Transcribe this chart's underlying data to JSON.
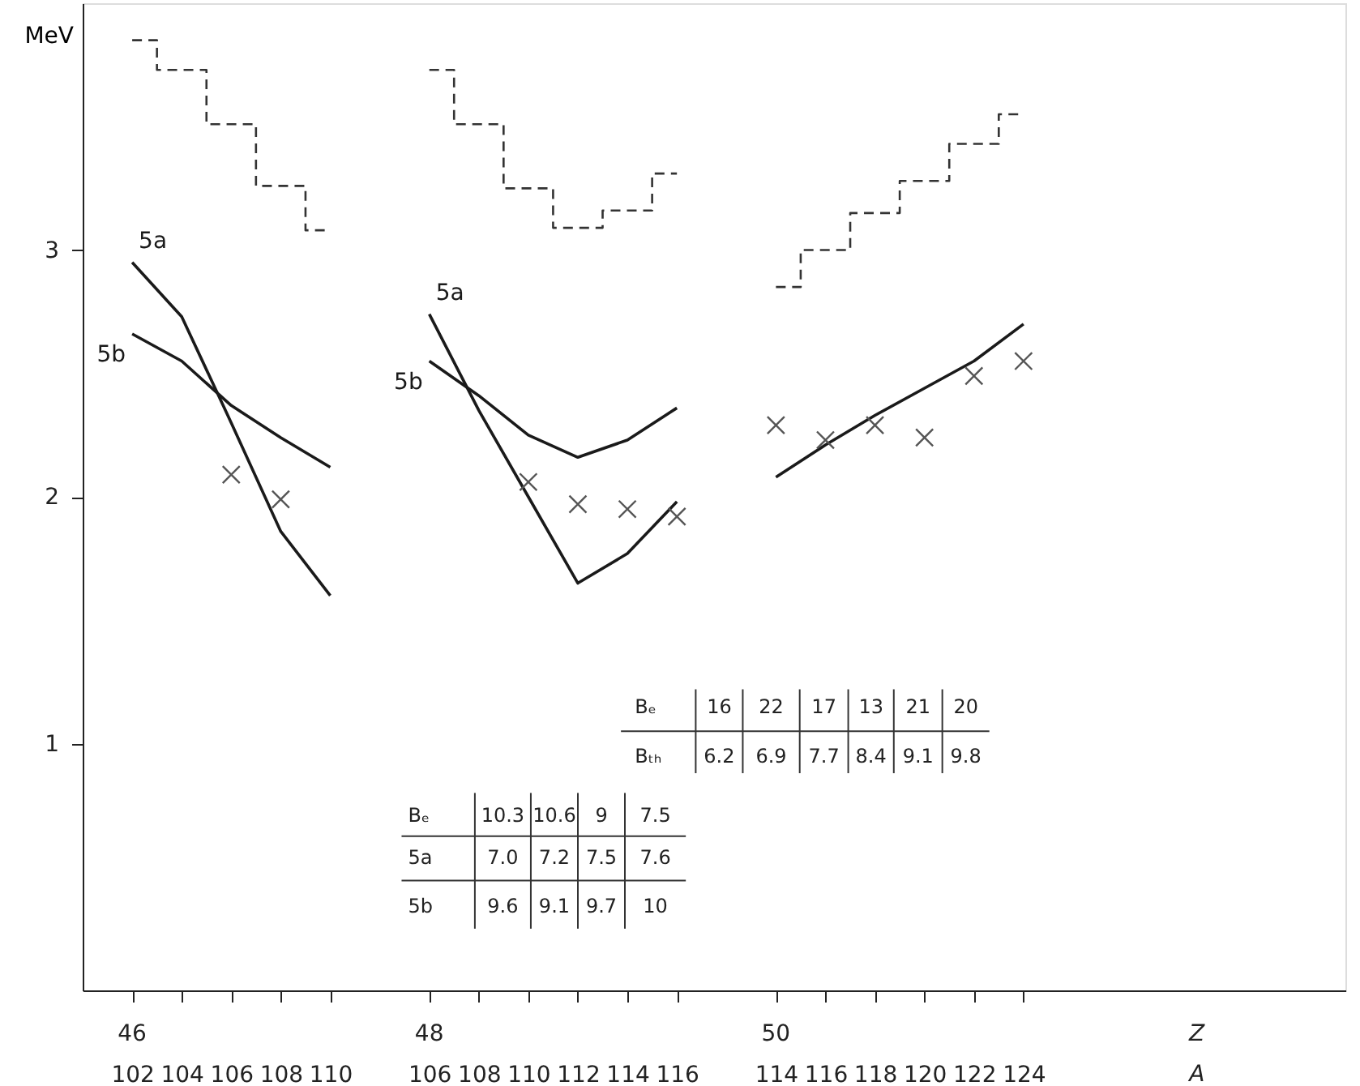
{
  "chart_data": {
    "type": "line",
    "ylabel": "MeV",
    "categories": [
      "102",
      "104",
      "106",
      "108",
      "110",
      null,
      "106",
      "108",
      "110",
      "112",
      "114",
      "116",
      null,
      "114",
      "116",
      "118",
      "120",
      "122",
      "124"
    ],
    "ylim": [
      0,
      4.0
    ],
    "yticks": [
      1,
      2,
      3
    ],
    "grid": false,
    "annotations": [
      "Bₑ",
      "16",
      "22",
      "17",
      "13",
      "21",
      "20",
      "Bₜₕ",
      "6.2",
      "6.9",
      "7.7",
      "8.4",
      "9.1",
      "9.8",
      "Bₑ",
      "10.3",
      "10.6",
      "9",
      "7.5",
      "5a",
      "7.0",
      "7.2",
      "7.5",
      "7.6",
      "5b",
      "9.6",
      "9.1",
      "9.7",
      "10",
      "46",
      "48",
      "50",
      "Z",
      "A"
    ],
    "series": [
      {
        "name": "5a",
        "color": "#1a1a1a",
        "values": [
          2.95,
          2.73,
          2.3,
          1.86,
          1.6,
          null,
          2.74,
          2.35,
          2.0,
          1.65,
          1.77,
          1.98,
          null,
          null,
          null,
          null,
          null,
          null,
          null
        ]
      },
      {
        "name": "5b",
        "color": "#1a1a1a",
        "values": [
          2.66,
          2.55,
          2.37,
          2.24,
          2.12,
          null,
          2.55,
          2.41,
          2.25,
          2.16,
          2.23,
          2.36,
          null,
          null,
          null,
          null,
          null,
          null,
          null
        ]
      },
      {
        "color": "#1a1a1a",
        "values": [
          null,
          null,
          null,
          null,
          null,
          null,
          null,
          null,
          null,
          null,
          null,
          null,
          null,
          2.08,
          2.21,
          2.33,
          2.44,
          2.55,
          2.7
        ]
      },
      {
        "type": "step",
        "line_style": "dashed",
        "color": "#333333",
        "values": [
          3.85,
          3.73,
          3.51,
          3.26,
          3.08,
          null,
          3.73,
          3.51,
          3.25,
          3.09,
          3.16,
          3.31,
          null,
          2.85,
          3.0,
          3.15,
          3.28,
          3.43,
          3.55
        ]
      },
      {
        "type": "scatter",
        "marker": "cross",
        "color": "#555555",
        "values": [
          null,
          null,
          2.09,
          1.99,
          null,
          null,
          null,
          null,
          2.06,
          1.97,
          1.95,
          1.92,
          null,
          2.29,
          2.23,
          2.29,
          2.24,
          2.49,
          2.55
        ]
      }
    ]
  }
}
